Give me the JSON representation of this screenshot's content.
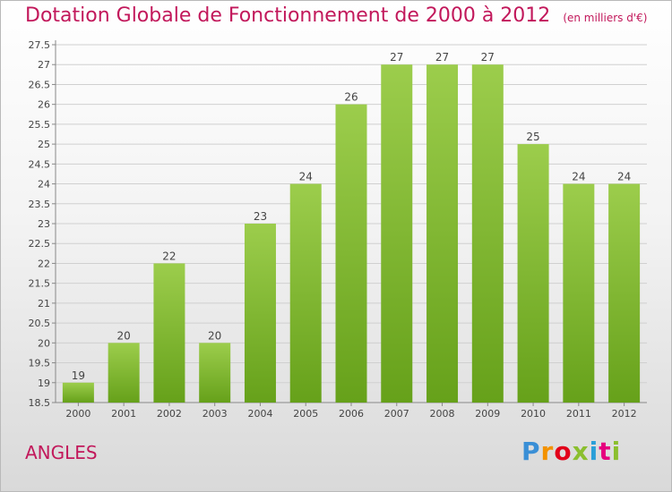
{
  "header": {
    "title": "Dotation Globale de Fonctionnement de 2000 à 2012",
    "unit": "(en milliers d'€)"
  },
  "footer": {
    "place": "ANGLES",
    "logo_text": "Proxiti"
  },
  "colors": {
    "title": "#c2185b",
    "bar_light": "#9ccd4c",
    "bar_dark": "#66a11a",
    "grid": "#cfcfcf"
  },
  "chart_data": {
    "type": "bar",
    "categories": [
      "2000",
      "2001",
      "2002",
      "2003",
      "2004",
      "2005",
      "2006",
      "2007",
      "2008",
      "2009",
      "2010",
      "2011",
      "2012"
    ],
    "values": [
      19,
      20,
      22,
      20,
      23,
      24,
      26,
      27,
      27,
      27,
      25,
      24,
      24
    ],
    "data_labels": [
      "19",
      "20",
      "22",
      "20",
      "23",
      "24",
      "26",
      "27",
      "27",
      "27",
      "25",
      "24",
      "24"
    ],
    "y_ticks": [
      "18.5",
      "19",
      "19.5",
      "20",
      "20.5",
      "21",
      "21.5",
      "22",
      "22.5",
      "23",
      "23.5",
      "24",
      "24.5",
      "25",
      "25.5",
      "26",
      "26.5",
      "27",
      "27.5"
    ],
    "ylim": [
      18.5,
      27.5
    ],
    "grid": true,
    "legend": "none"
  }
}
